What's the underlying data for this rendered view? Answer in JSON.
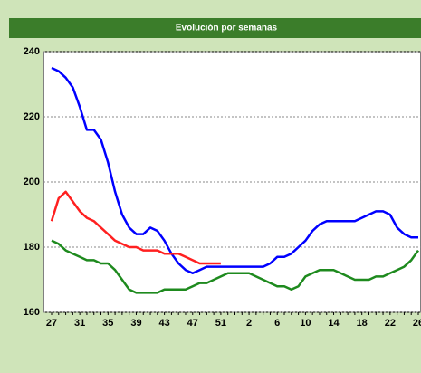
{
  "chart_data": {
    "type": "line",
    "title": "Evolución por semanas",
    "categories": [
      "27",
      null,
      null,
      null,
      "31",
      null,
      null,
      null,
      "35",
      null,
      null,
      null,
      "39",
      null,
      null,
      null,
      "43",
      null,
      null,
      null,
      "47",
      null,
      null,
      null,
      "51",
      null,
      null,
      null,
      "2",
      null,
      null,
      null,
      "6",
      null,
      null,
      null,
      "10",
      null,
      null,
      null,
      "14",
      null,
      null,
      null,
      "18",
      null,
      null,
      null,
      "22",
      null,
      null,
      null,
      "26"
    ],
    "series": [
      {
        "color": "#0000ff",
        "values": [
          235,
          234,
          232,
          229,
          223,
          216,
          216,
          213,
          206,
          197,
          190,
          186,
          184,
          184,
          186,
          185,
          182,
          178,
          175,
          173,
          172,
          173,
          174,
          174,
          174,
          174,
          174,
          174,
          174,
          174,
          174,
          175,
          177,
          177,
          178,
          180,
          182,
          185,
          187,
          188,
          188,
          188,
          188,
          188,
          189,
          190,
          191,
          191,
          190,
          186,
          184,
          183,
          183
        ]
      },
      {
        "color": "#ff2020",
        "values": [
          188,
          195,
          197,
          194,
          191,
          189,
          188,
          186,
          184,
          182,
          181,
          180,
          180,
          179,
          179,
          179,
          178,
          178,
          178,
          177,
          176,
          175,
          175,
          175,
          175,
          null,
          null,
          null,
          null,
          null,
          null,
          null,
          null,
          null,
          null,
          null,
          null,
          null,
          null,
          null,
          null,
          null,
          null,
          null,
          null,
          null,
          null,
          null,
          null,
          null,
          null,
          null,
          null
        ]
      },
      {
        "color": "#1e8a1e",
        "values": [
          182,
          181,
          179,
          178,
          177,
          176,
          176,
          175,
          175,
          173,
          170,
          167,
          166,
          166,
          166,
          166,
          167,
          167,
          167,
          167,
          168,
          169,
          169,
          170,
          171,
          172,
          172,
          172,
          172,
          171,
          170,
          169,
          168,
          168,
          167,
          168,
          171,
          172,
          173,
          173,
          173,
          172,
          171,
          170,
          170,
          170,
          171,
          171,
          172,
          173,
          174,
          176,
          179
        ]
      }
    ],
    "ylim": [
      160,
      240
    ],
    "yticks": [
      160,
      180,
      200,
      220,
      240
    ],
    "grid": true
  }
}
